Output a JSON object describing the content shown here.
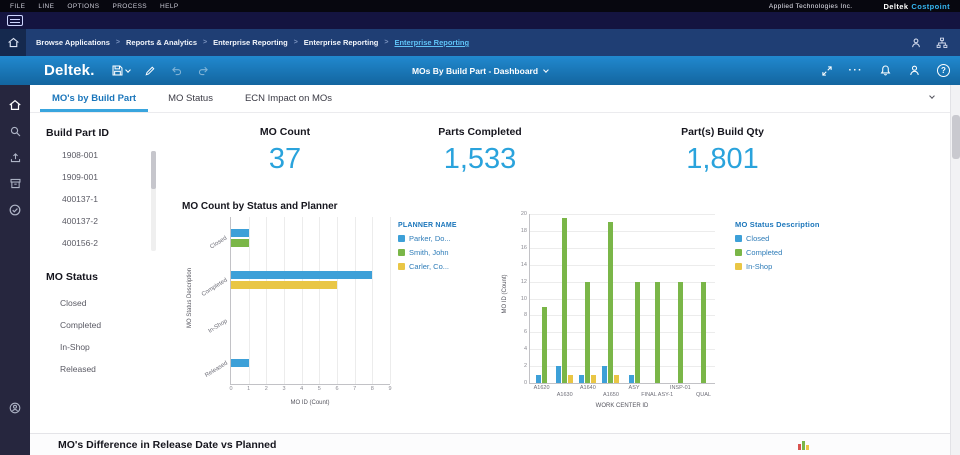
{
  "menu_bar": {
    "items": [
      "FILE",
      "LINE",
      "OPTIONS",
      "PROCESS",
      "HELP"
    ],
    "company": "Applied Technologies Inc.",
    "brand": "Deltek",
    "brand_product": "Costpoint"
  },
  "breadcrumb": {
    "separator": ">",
    "items": [
      "Browse Applications",
      "Reports & Analytics",
      "Enterprise Reporting",
      "Enterprise Reporting",
      "Enterprise Reporting"
    ]
  },
  "header": {
    "logo": "Deltek.",
    "title": "MOs By Build Part - Dashboard",
    "more": "···",
    "help": "?"
  },
  "tabs": [
    "MO's by Build Part",
    "MO Status",
    "ECN Impact on MOs"
  ],
  "filters": {
    "build_part": {
      "title": "Build Part ID",
      "items": [
        "1908-001",
        "1909-001",
        "400137-1",
        "400137-2",
        "400156-2"
      ]
    },
    "mo_status": {
      "title": "MO Status",
      "items": [
        "Closed",
        "Completed",
        "In-Shop",
        "Released"
      ]
    }
  },
  "kpis": [
    {
      "label": "MO Count",
      "value": "37"
    },
    {
      "label": "Parts Completed",
      "value": "1,533"
    },
    {
      "label": "Part(s) Build Qty",
      "value": "1,801"
    }
  ],
  "colors": {
    "accent_blue": "#1b76bb",
    "kpi_value": "#2aa3dc",
    "bar_blue": "#3da0d8",
    "bar_green": "#7ab648",
    "bar_yellow": "#e9c645"
  },
  "chart_data": [
    {
      "type": "bar",
      "orientation": "horizontal",
      "title": "MO Count by Status and Planner",
      "categories": [
        "Closed",
        "Completed",
        "In-Shop",
        "Released"
      ],
      "series": [
        {
          "name": "Parker, Do...",
          "color": "#3da0d8",
          "values": [
            1,
            8,
            0,
            1
          ]
        },
        {
          "name": "Smith, John",
          "color": "#7ab648",
          "values": [
            1,
            0,
            0,
            0
          ]
        },
        {
          "name": "Carler, Co...",
          "color": "#e9c645",
          "values": [
            0,
            6,
            0,
            0
          ]
        }
      ],
      "legend_title": "PLANNER NAME",
      "legend_position": "right",
      "xlabel": "MO ID (Count)",
      "ylabel": "MO Status Description",
      "xlim": [
        0,
        9
      ],
      "xticks": [
        0,
        1,
        2,
        3,
        4,
        5,
        6,
        7,
        8,
        9
      ],
      "grid": true
    },
    {
      "type": "bar",
      "orientation": "vertical",
      "title": "",
      "categories": [
        "A1620",
        "A1630",
        "A1640",
        "A1650",
        "ASY",
        "FINAL ASY-1",
        "INSP-01",
        "QUAL"
      ],
      "series": [
        {
          "name": "Closed",
          "color": "#3da0d8",
          "values": [
            1,
            2,
            1,
            2,
            1,
            0,
            0,
            0
          ]
        },
        {
          "name": "Completed",
          "color": "#7ab648",
          "values": [
            9,
            19.5,
            12,
            19,
            12,
            12,
            12,
            12
          ]
        },
        {
          "name": "In-Shop",
          "color": "#e9c645",
          "values": [
            0,
            1,
            1,
            1,
            0,
            0,
            0,
            0
          ]
        }
      ],
      "legend_title": "MO Status Description",
      "legend_position": "right",
      "xlabel": "WORK CENTER ID",
      "ylabel": "MO ID (Count)",
      "ylim": [
        0,
        20
      ],
      "yticks": [
        0,
        2,
        4,
        6,
        8,
        10,
        12,
        14,
        16,
        18,
        20
      ],
      "grid": true
    }
  ],
  "bottom_section": {
    "title": "MO's Difference in Release Date vs Planned"
  }
}
